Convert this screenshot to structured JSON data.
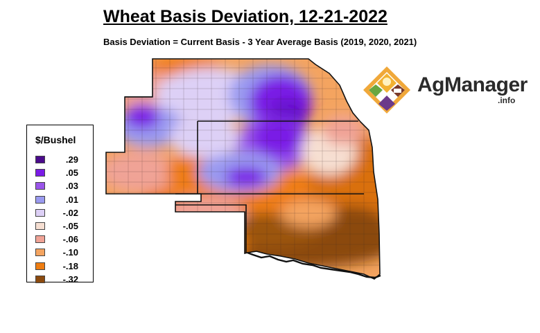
{
  "title": "Wheat Basis Deviation, 12-21-2022",
  "subtitle": "Basis Deviation = Current Basis - 3 Year Average Basis (2019, 2020, 2021)",
  "legend": {
    "title": "$/Bushel",
    "items": [
      {
        "label": ".29",
        "color": "#4b0b8c"
      },
      {
        "label": ".05",
        "color": "#7a1be6"
      },
      {
        "label": ".03",
        "color": "#9a55ea"
      },
      {
        "label": ".01",
        "color": "#9a9af0"
      },
      {
        "label": "-.02",
        "color": "#ddd0f6"
      },
      {
        "label": "-.05",
        "color": "#f6dfd2"
      },
      {
        "label": "-.06",
        "color": "#f0a396"
      },
      {
        "label": "-.10",
        "color": "#f4a460"
      },
      {
        "label": "-.18",
        "color": "#ef7d12"
      },
      {
        "label": "-.32",
        "color": "#8b4a0e"
      }
    ]
  },
  "logo": {
    "name": "AgManager",
    "suffix": ".info"
  }
}
